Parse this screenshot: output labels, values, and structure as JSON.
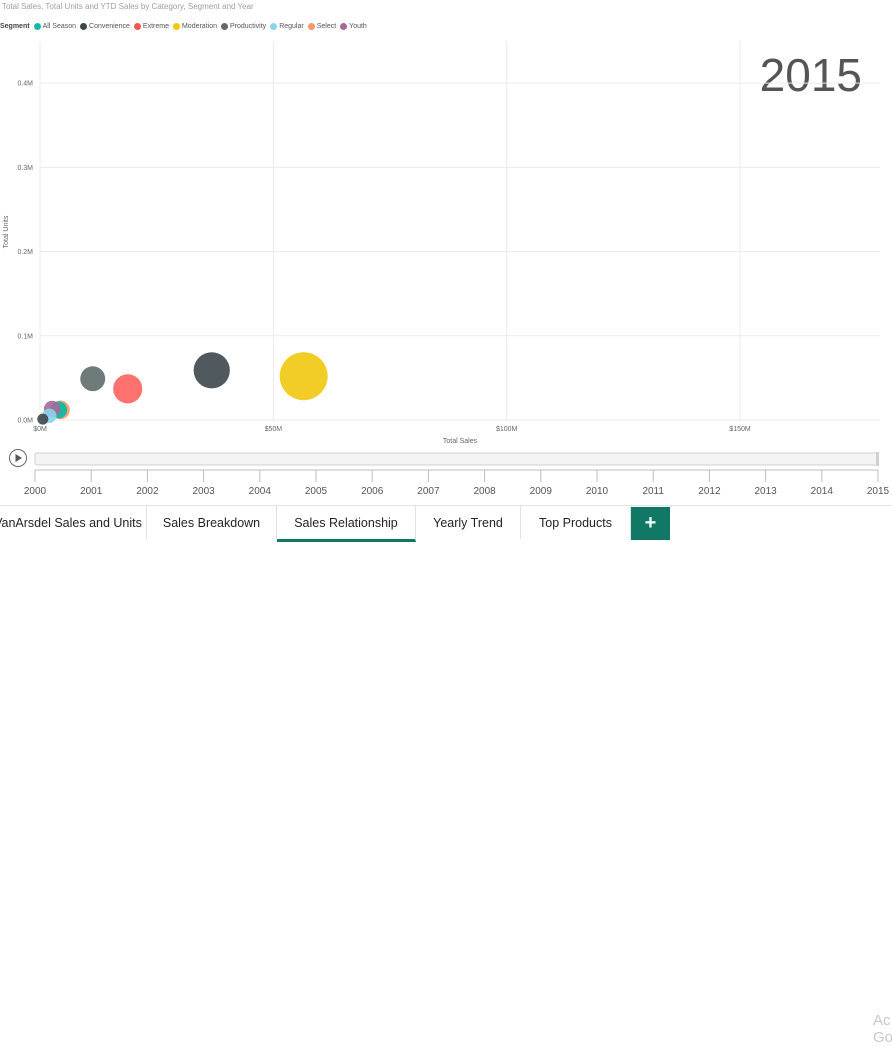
{
  "visual": {
    "title": "Total Sales, Total Units and YTD Sales by Category, Segment and Year",
    "legend_title": "Segment",
    "legend": [
      {
        "name": "All Season",
        "color": "#1ab8ab"
      },
      {
        "name": "Convenience",
        "color": "#3c474c"
      },
      {
        "name": "Extreme",
        "color": "#f2564f"
      },
      {
        "name": "Moderation",
        "color": "#f2c80f"
      },
      {
        "name": "Productivity",
        "color": "#5f6b6d"
      },
      {
        "name": "Regular",
        "color": "#8ad4eb"
      },
      {
        "name": "Select",
        "color": "#fe9666"
      },
      {
        "name": "Youth",
        "color": "#a66999"
      }
    ],
    "year_label": "2015"
  },
  "chart_data": {
    "type": "scatter",
    "title": "Total Sales, Total Units and YTD Sales by Category, Segment and Year",
    "xlabel": "Total Sales",
    "ylabel": "Total Units",
    "x_ticks": [
      "$0M",
      "$50M",
      "$100M",
      "$150M"
    ],
    "y_ticks": [
      "0.0M",
      "0.1M",
      "0.2M",
      "0.3M",
      "0.4M"
    ],
    "xlim": [
      0,
      180
    ],
    "ylim": [
      0,
      0.45
    ],
    "x_unit": "$M",
    "y_unit": "M units",
    "grid": true,
    "legend_position": "top-left",
    "points": [
      {
        "segment": "Moderation",
        "x": 56.5,
        "y": 0.052,
        "size": 1.0,
        "color": "#f2c80f"
      },
      {
        "segment": "Convenience",
        "x": 36.8,
        "y": 0.059,
        "size": 0.72,
        "color": "#3c474c"
      },
      {
        "segment": "Extreme",
        "x": 18.8,
        "y": 0.037,
        "size": 0.55,
        "color": "#fd625e"
      },
      {
        "segment": "Productivity",
        "x": 11.3,
        "y": 0.049,
        "size": 0.45,
        "color": "#5f6b6d"
      },
      {
        "segment": "Select",
        "x": 4.4,
        "y": 0.012,
        "size": 0.3,
        "color": "#fe9666"
      },
      {
        "segment": "All Season",
        "x": 4.0,
        "y": 0.012,
        "size": 0.26,
        "color": "#01b8aa"
      },
      {
        "segment": "Youth",
        "x": 2.6,
        "y": 0.013,
        "size": 0.25,
        "color": "#a66999"
      },
      {
        "segment": "Regular",
        "x": 2.0,
        "y": 0.005,
        "size": 0.2,
        "color": "#8ad4eb"
      },
      {
        "segment": "Convenience",
        "x": 0.6,
        "y": 0.001,
        "size": 0.12,
        "color": "#3c474c"
      }
    ]
  },
  "play_axis": {
    "years": [
      "2000",
      "2001",
      "2002",
      "2003",
      "2004",
      "2005",
      "2006",
      "2007",
      "2008",
      "2009",
      "2010",
      "2011",
      "2012",
      "2013",
      "2014",
      "2015"
    ],
    "current": "2015",
    "progress": 1.0
  },
  "tabs": [
    {
      "label": "VanArsdel Sales and Units",
      "active": false
    },
    {
      "label": "Sales Breakdown",
      "active": false
    },
    {
      "label": "Sales Relationship",
      "active": true
    },
    {
      "label": "Yearly Trend",
      "active": false
    },
    {
      "label": "Top Products",
      "active": false
    }
  ],
  "add_tab_label": "+",
  "watermark": [
    "Ac",
    "Go"
  ]
}
